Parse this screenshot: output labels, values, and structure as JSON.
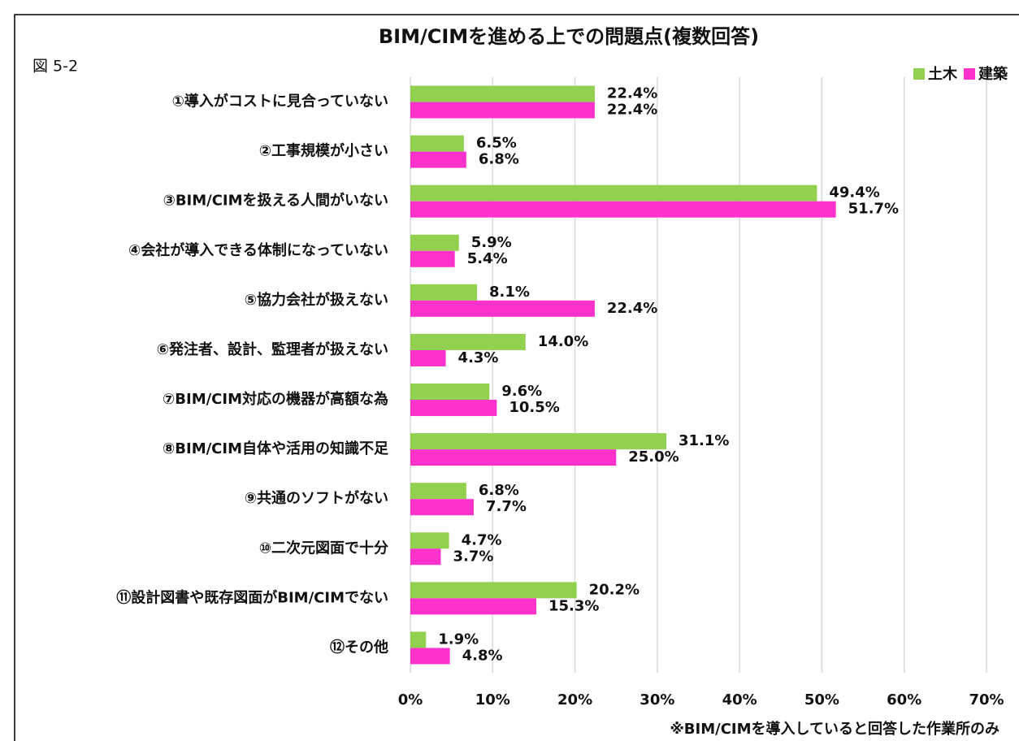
{
  "chart_data": {
    "type": "hbar",
    "title": "BIM/CIMを進める上での問題点(複数回答)",
    "figure_label": "図 5-2",
    "footnote": "※BIM/CIMを導入していると回答した作業所のみ",
    "categories": [
      "①導入がコストに見合っていない",
      "②工事規模が小さい",
      "③BIM/CIMを扱える人間がいない",
      "④会社が導入できる体制になっていない",
      "⑤協力会社が扱えない",
      "⑥発注者、設計、監理者が扱えない",
      "⑦BIM/CIM対応の機器が高額な為",
      "⑧BIM/CIM自体や活用の知識不足",
      "⑨共通のソフトがない",
      "⑩二次元図面で十分",
      "⑪設計図書や既存図面がBIM/CIMでない",
      "⑫その他"
    ],
    "series": [
      {
        "name": "土木",
        "color": "#92d050",
        "values": [
          22.4,
          6.5,
          49.4,
          5.9,
          8.1,
          14.0,
          9.6,
          31.1,
          6.8,
          4.7,
          20.2,
          1.9
        ],
        "value_labels": [
          "22.4%",
          "6.5%",
          "49.4%",
          "5.9%",
          "8.1%",
          "14.0%",
          "9.6%",
          "31.1%",
          "6.8%",
          "4.7%",
          "20.2%",
          "1.9%"
        ]
      },
      {
        "name": "建築",
        "color": "#ff33cc",
        "values": [
          22.4,
          6.8,
          51.7,
          5.4,
          22.4,
          4.3,
          10.5,
          25.0,
          7.7,
          3.7,
          15.3,
          4.8
        ],
        "value_labels": [
          "22.4%",
          "6.8%",
          "51.7%",
          "5.4%",
          "22.4%",
          "4.3%",
          "10.5%",
          "25.0%",
          "7.7%",
          "3.7%",
          "15.3%",
          "4.8%"
        ]
      }
    ],
    "xlim": [
      0,
      70
    ],
    "xticks": [
      {
        "value": 0,
        "label": "0%"
      },
      {
        "value": 10,
        "label": "10%"
      },
      {
        "value": 20,
        "label": "20%"
      },
      {
        "value": 30,
        "label": "30%"
      },
      {
        "value": 40,
        "label": "40%"
      },
      {
        "value": 50,
        "label": "50%"
      },
      {
        "value": 60,
        "label": "60%"
      },
      {
        "value": 70,
        "label": "70%"
      }
    ],
    "grid": true,
    "legend": "top-right"
  }
}
